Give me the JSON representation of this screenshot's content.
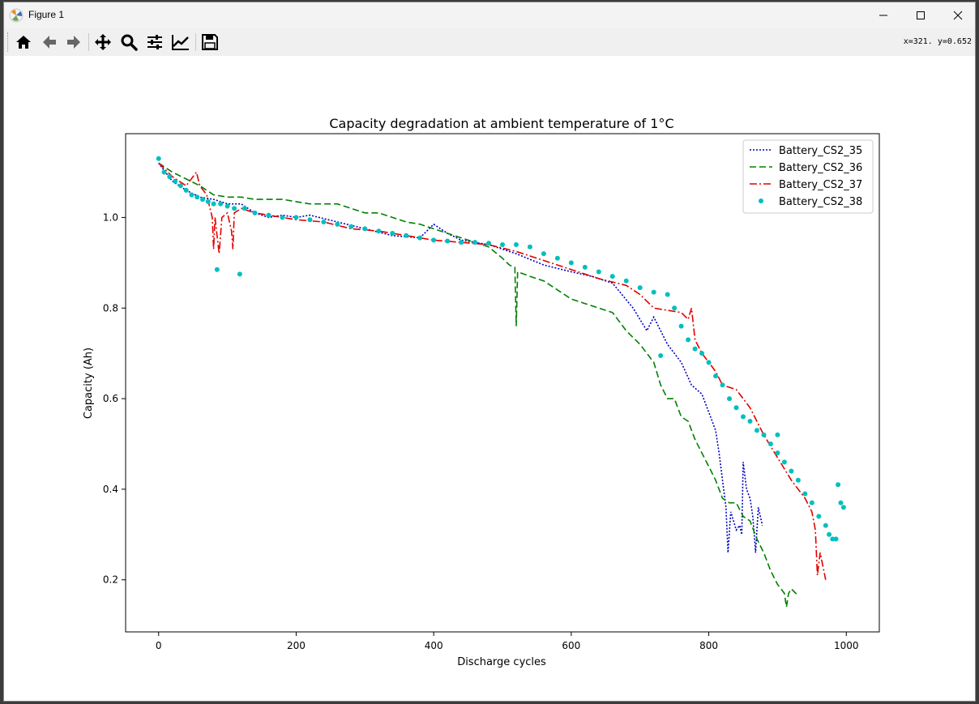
{
  "window": {
    "title": "Figure 1",
    "coords": "x=321. y=0.652"
  },
  "toolbar": {
    "buttons": [
      "home-icon",
      "back-arrow-icon",
      "forward-arrow-icon",
      "pan-icon",
      "zoom-icon",
      "configure-subplots-icon",
      "edit-axis-icon",
      "save-icon"
    ]
  },
  "chart_data": {
    "type": "line",
    "title": "Capacity degradation at ambient temperature of 1°C",
    "xlabel": "Discharge cycles",
    "ylabel": "Capacity (Ah)",
    "xlim": [
      -48,
      1048
    ],
    "ylim": [
      0.085,
      1.185
    ],
    "xticks": [
      0,
      200,
      400,
      600,
      800,
      1000
    ],
    "yticks": [
      0.2,
      0.4,
      0.6,
      0.8,
      1.0
    ],
    "xtick_labels": [
      "0",
      "200",
      "400",
      "600",
      "800",
      "1000"
    ],
    "ytick_labels": [
      "0.2",
      "0.4",
      "0.6",
      "0.8",
      "1.0"
    ],
    "grid": false,
    "legend_position": "top-right",
    "series": [
      {
        "name": "Battery_CS2_35",
        "color": "#0000bf",
        "style": "dotted",
        "points": [
          [
            0,
            1.12
          ],
          [
            20,
            1.08
          ],
          [
            40,
            1.06
          ],
          [
            60,
            1.045
          ],
          [
            80,
            1.04
          ],
          [
            100,
            1.03
          ],
          [
            120,
            1.03
          ],
          [
            140,
            1.01
          ],
          [
            160,
            1.0
          ],
          [
            180,
            1.005
          ],
          [
            200,
            1.0
          ],
          [
            220,
            1.005
          ],
          [
            260,
            0.99
          ],
          [
            300,
            0.975
          ],
          [
            340,
            0.96
          ],
          [
            380,
            0.955
          ],
          [
            400,
            0.985
          ],
          [
            420,
            0.965
          ],
          [
            440,
            0.95
          ],
          [
            480,
            0.94
          ],
          [
            520,
            0.92
          ],
          [
            560,
            0.895
          ],
          [
            600,
            0.88
          ],
          [
            630,
            0.87
          ],
          [
            660,
            0.855
          ],
          [
            690,
            0.8
          ],
          [
            710,
            0.75
          ],
          [
            720,
            0.78
          ],
          [
            740,
            0.72
          ],
          [
            760,
            0.68
          ],
          [
            775,
            0.63
          ],
          [
            790,
            0.61
          ],
          [
            800,
            0.57
          ],
          [
            810,
            0.53
          ],
          [
            815,
            0.48
          ],
          [
            820,
            0.42
          ],
          [
            825,
            0.36
          ],
          [
            828,
            0.26
          ],
          [
            832,
            0.35
          ],
          [
            840,
            0.31
          ],
          [
            845,
            0.32
          ],
          [
            848,
            0.3
          ],
          [
            850,
            0.46
          ],
          [
            855,
            0.4
          ],
          [
            860,
            0.38
          ],
          [
            864,
            0.34
          ],
          [
            868,
            0.26
          ],
          [
            872,
            0.36
          ],
          [
            878,
            0.32
          ]
        ]
      },
      {
        "name": "Battery_CS2_36",
        "color": "#008000",
        "style": "dashed",
        "points": [
          [
            0,
            1.12
          ],
          [
            20,
            1.1
          ],
          [
            40,
            1.085
          ],
          [
            60,
            1.07
          ],
          [
            80,
            1.05
          ],
          [
            100,
            1.045
          ],
          [
            120,
            1.045
          ],
          [
            140,
            1.04
          ],
          [
            160,
            1.04
          ],
          [
            180,
            1.04
          ],
          [
            200,
            1.035
          ],
          [
            220,
            1.03
          ],
          [
            240,
            1.03
          ],
          [
            260,
            1.03
          ],
          [
            280,
            1.02
          ],
          [
            300,
            1.01
          ],
          [
            320,
            1.01
          ],
          [
            340,
            1.0
          ],
          [
            360,
            0.99
          ],
          [
            380,
            0.985
          ],
          [
            400,
            0.975
          ],
          [
            420,
            0.965
          ],
          [
            440,
            0.955
          ],
          [
            460,
            0.945
          ],
          [
            480,
            0.935
          ],
          [
            500,
            0.91
          ],
          [
            510,
            0.895
          ],
          [
            518,
            0.89
          ],
          [
            520,
            0.76
          ],
          [
            522,
            0.88
          ],
          [
            540,
            0.87
          ],
          [
            560,
            0.86
          ],
          [
            580,
            0.84
          ],
          [
            600,
            0.82
          ],
          [
            620,
            0.81
          ],
          [
            640,
            0.8
          ],
          [
            660,
            0.79
          ],
          [
            680,
            0.75
          ],
          [
            700,
            0.72
          ],
          [
            710,
            0.7
          ],
          [
            720,
            0.68
          ],
          [
            730,
            0.63
          ],
          [
            740,
            0.6
          ],
          [
            750,
            0.6
          ],
          [
            760,
            0.56
          ],
          [
            770,
            0.55
          ],
          [
            780,
            0.51
          ],
          [
            790,
            0.48
          ],
          [
            800,
            0.45
          ],
          [
            810,
            0.42
          ],
          [
            820,
            0.38
          ],
          [
            830,
            0.37
          ],
          [
            840,
            0.37
          ],
          [
            850,
            0.34
          ],
          [
            860,
            0.33
          ],
          [
            870,
            0.29
          ],
          [
            880,
            0.26
          ],
          [
            890,
            0.22
          ],
          [
            900,
            0.19
          ],
          [
            910,
            0.17
          ],
          [
            913,
            0.14
          ],
          [
            916,
            0.17
          ],
          [
            920,
            0.18
          ],
          [
            930,
            0.165
          ]
        ]
      },
      {
        "name": "Battery_CS2_37",
        "color": "#e00000",
        "style": "dashdot",
        "points": [
          [
            0,
            1.12
          ],
          [
            20,
            1.09
          ],
          [
            40,
            1.07
          ],
          [
            55,
            1.1
          ],
          [
            60,
            1.07
          ],
          [
            70,
            1.05
          ],
          [
            78,
            1.0
          ],
          [
            80,
            0.93
          ],
          [
            82,
            1.0
          ],
          [
            88,
            0.92
          ],
          [
            92,
            1.0
          ],
          [
            100,
            1.01
          ],
          [
            106,
            0.97
          ],
          [
            108,
            0.93
          ],
          [
            110,
            1.01
          ],
          [
            120,
            1.02
          ],
          [
            140,
            1.01
          ],
          [
            160,
            1.005
          ],
          [
            200,
            0.995
          ],
          [
            240,
            0.99
          ],
          [
            280,
            0.975
          ],
          [
            320,
            0.97
          ],
          [
            360,
            0.96
          ],
          [
            400,
            0.95
          ],
          [
            440,
            0.945
          ],
          [
            480,
            0.94
          ],
          [
            520,
            0.925
          ],
          [
            560,
            0.905
          ],
          [
            600,
            0.885
          ],
          [
            640,
            0.865
          ],
          [
            680,
            0.85
          ],
          [
            700,
            0.83
          ],
          [
            720,
            0.8
          ],
          [
            740,
            0.795
          ],
          [
            760,
            0.79
          ],
          [
            770,
            0.775
          ],
          [
            775,
            0.8
          ],
          [
            780,
            0.73
          ],
          [
            790,
            0.7
          ],
          [
            800,
            0.68
          ],
          [
            810,
            0.66
          ],
          [
            820,
            0.63
          ],
          [
            840,
            0.62
          ],
          [
            860,
            0.58
          ],
          [
            880,
            0.52
          ],
          [
            900,
            0.47
          ],
          [
            920,
            0.42
          ],
          [
            940,
            0.38
          ],
          [
            950,
            0.35
          ],
          [
            955,
            0.31
          ],
          [
            958,
            0.21
          ],
          [
            962,
            0.26
          ],
          [
            970,
            0.2
          ]
        ]
      },
      {
        "name": "Battery_CS2_38",
        "color": "#00bfbf",
        "style": "markers",
        "points": [
          [
            0,
            1.13
          ],
          [
            8,
            1.1
          ],
          [
            16,
            1.09
          ],
          [
            24,
            1.08
          ],
          [
            32,
            1.07
          ],
          [
            40,
            1.06
          ],
          [
            48,
            1.05
          ],
          [
            56,
            1.045
          ],
          [
            64,
            1.04
          ],
          [
            72,
            1.035
          ],
          [
            80,
            1.03
          ],
          [
            85,
            0.885
          ],
          [
            90,
            1.03
          ],
          [
            100,
            1.025
          ],
          [
            110,
            1.02
          ],
          [
            118,
            0.875
          ],
          [
            125,
            1.02
          ],
          [
            140,
            1.01
          ],
          [
            160,
            1.005
          ],
          [
            180,
            1.0
          ],
          [
            200,
            1.0
          ],
          [
            220,
            0.995
          ],
          [
            240,
            0.99
          ],
          [
            260,
            0.985
          ],
          [
            280,
            0.98
          ],
          [
            300,
            0.975
          ],
          [
            320,
            0.97
          ],
          [
            340,
            0.965
          ],
          [
            360,
            0.96
          ],
          [
            380,
            0.955
          ],
          [
            400,
            0.95
          ],
          [
            420,
            0.948
          ],
          [
            440,
            0.945
          ],
          [
            460,
            0.945
          ],
          [
            480,
            0.943
          ],
          [
            500,
            0.94
          ],
          [
            520,
            0.94
          ],
          [
            540,
            0.935
          ],
          [
            560,
            0.92
          ],
          [
            580,
            0.91
          ],
          [
            600,
            0.9
          ],
          [
            620,
            0.89
          ],
          [
            640,
            0.88
          ],
          [
            660,
            0.87
          ],
          [
            680,
            0.86
          ],
          [
            700,
            0.845
          ],
          [
            720,
            0.835
          ],
          [
            740,
            0.83
          ],
          [
            750,
            0.8
          ],
          [
            760,
            0.76
          ],
          [
            770,
            0.73
          ],
          [
            780,
            0.71
          ],
          [
            790,
            0.7
          ],
          [
            800,
            0.68
          ],
          [
            810,
            0.65
          ],
          [
            820,
            0.63
          ],
          [
            830,
            0.6
          ],
          [
            840,
            0.58
          ],
          [
            850,
            0.56
          ],
          [
            860,
            0.55
          ],
          [
            870,
            0.53
          ],
          [
            880,
            0.52
          ],
          [
            890,
            0.5
          ],
          [
            900,
            0.48
          ],
          [
            910,
            0.46
          ],
          [
            920,
            0.44
          ],
          [
            930,
            0.42
          ],
          [
            940,
            0.39
          ],
          [
            950,
            0.37
          ],
          [
            960,
            0.34
          ],
          [
            970,
            0.32
          ],
          [
            975,
            0.3
          ],
          [
            980,
            0.29
          ],
          [
            985,
            0.29
          ],
          [
            988,
            0.41
          ],
          [
            992,
            0.37
          ],
          [
            996,
            0.36
          ],
          [
            730,
            0.695
          ],
          [
            900,
            0.52
          ]
        ]
      }
    ]
  }
}
